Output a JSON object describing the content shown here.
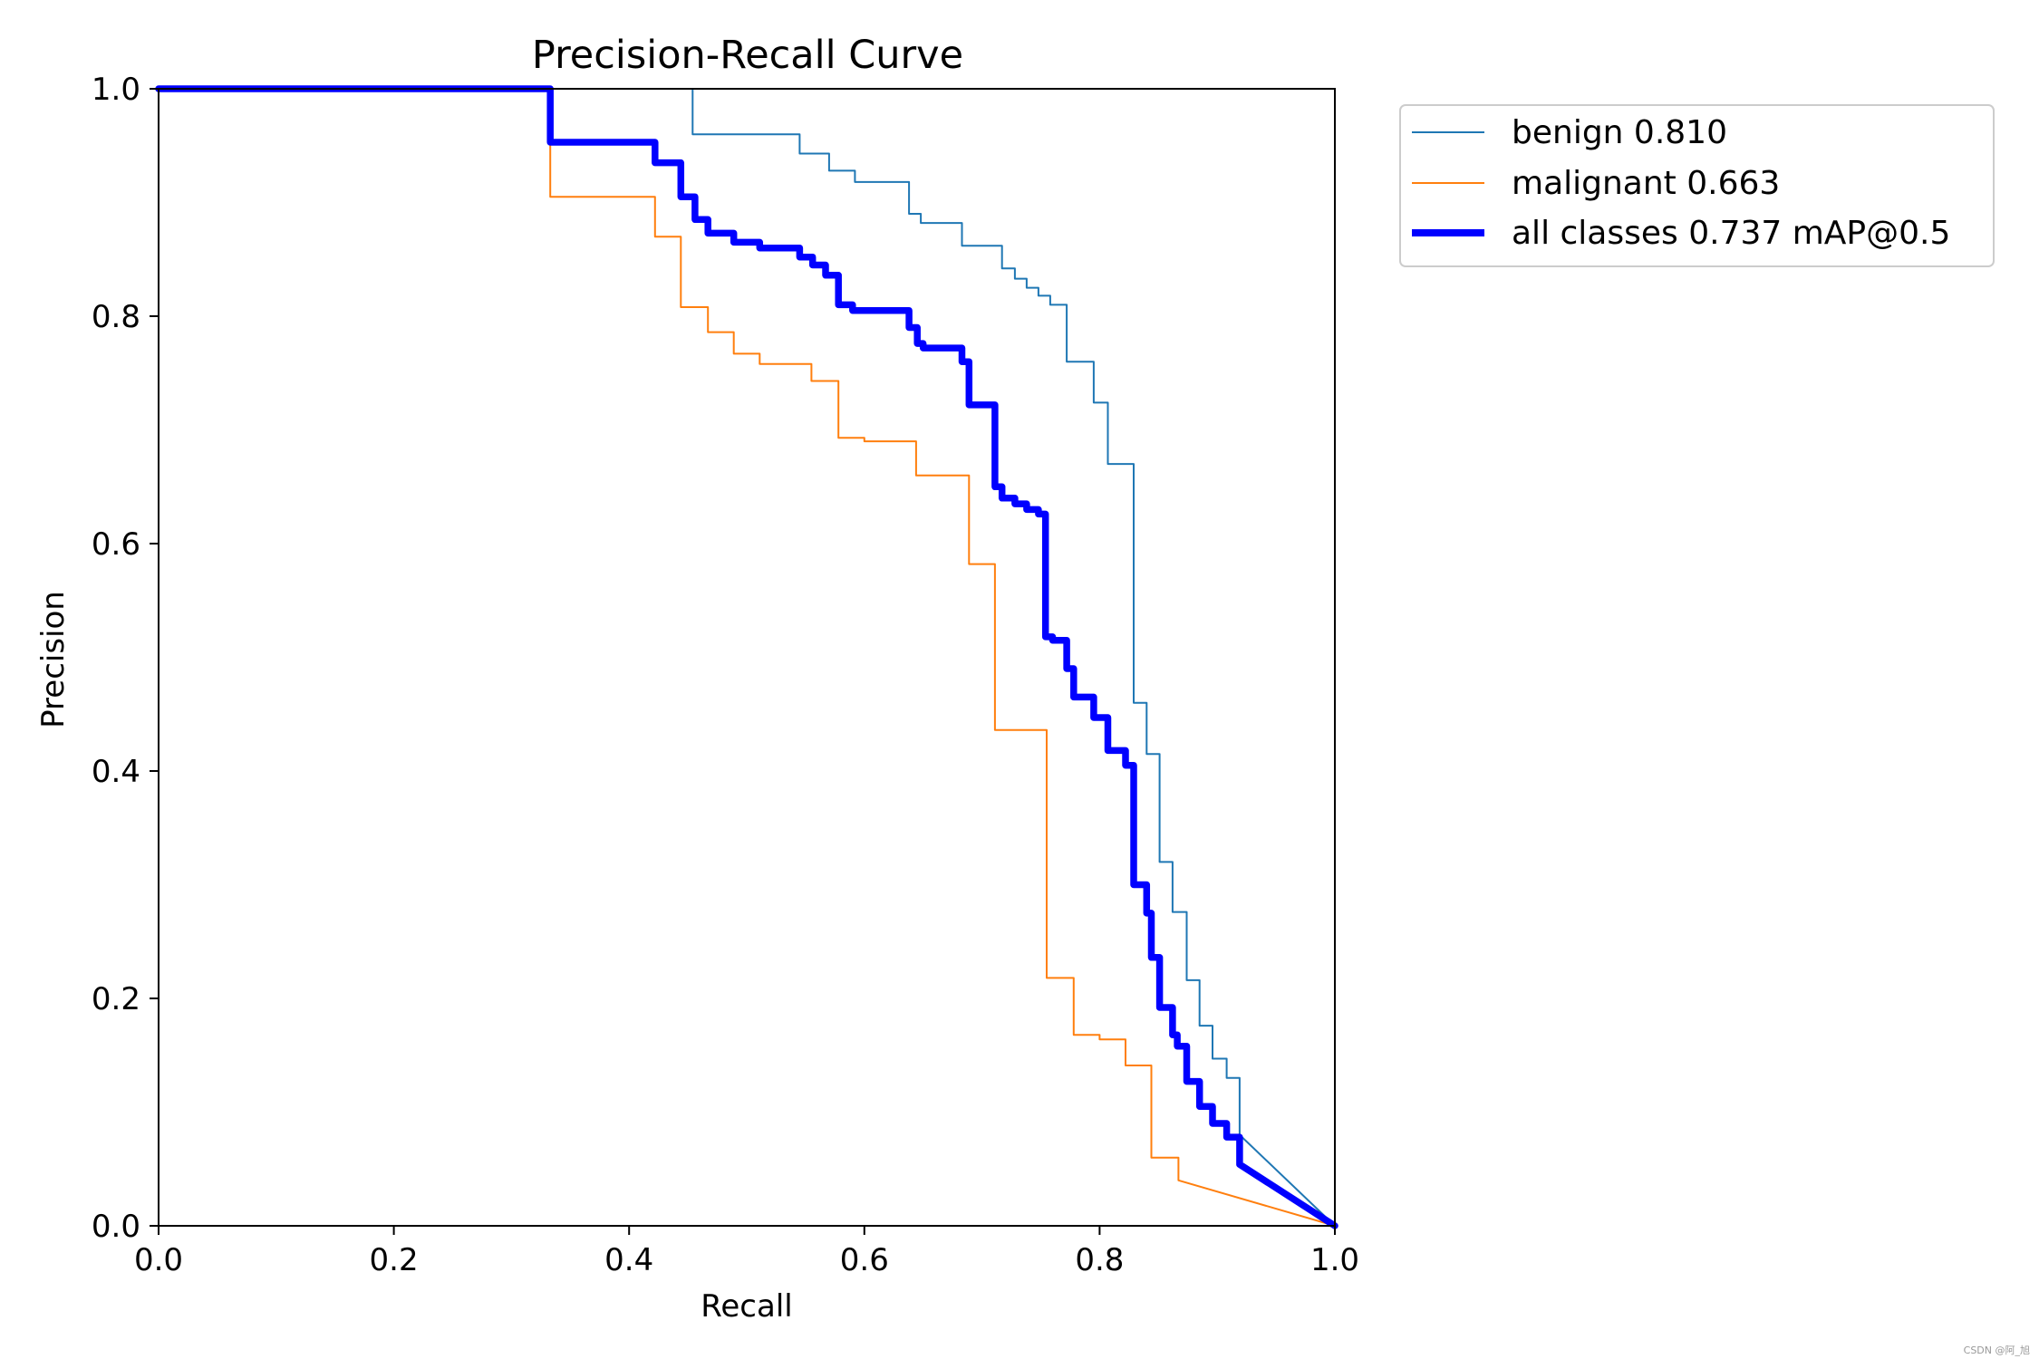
{
  "chart_data": {
    "type": "line",
    "title": "Precision-Recall Curve",
    "xlabel": "Recall",
    "ylabel": "Precision",
    "xlim": [
      0,
      1
    ],
    "ylim": [
      0,
      1
    ],
    "xticks": [
      "0.0",
      "0.2",
      "0.4",
      "0.6",
      "0.8",
      "1.0"
    ],
    "yticks": [
      "0.0",
      "0.2",
      "0.4",
      "0.6",
      "0.8",
      "1.0"
    ],
    "legend_position": "outside-top-right",
    "series": [
      {
        "name": "benign 0.810",
        "color": "#1f77b4",
        "style": "thin",
        "points": [
          [
            0,
            1.0
          ],
          [
            0.454,
            1.0
          ],
          [
            0.454,
            0.96
          ],
          [
            0.545,
            0.96
          ],
          [
            0.545,
            0.943
          ],
          [
            0.57,
            0.943
          ],
          [
            0.57,
            0.928
          ],
          [
            0.592,
            0.928
          ],
          [
            0.592,
            0.918
          ],
          [
            0.638,
            0.918
          ],
          [
            0.638,
            0.89
          ],
          [
            0.648,
            0.89
          ],
          [
            0.648,
            0.882
          ],
          [
            0.683,
            0.882
          ],
          [
            0.683,
            0.862
          ],
          [
            0.717,
            0.862
          ],
          [
            0.717,
            0.842
          ],
          [
            0.728,
            0.842
          ],
          [
            0.728,
            0.833
          ],
          [
            0.738,
            0.833
          ],
          [
            0.738,
            0.825
          ],
          [
            0.748,
            0.825
          ],
          [
            0.748,
            0.818
          ],
          [
            0.758,
            0.818
          ],
          [
            0.758,
            0.81
          ],
          [
            0.772,
            0.81
          ],
          [
            0.772,
            0.76
          ],
          [
            0.795,
            0.76
          ],
          [
            0.795,
            0.724
          ],
          [
            0.807,
            0.724
          ],
          [
            0.807,
            0.67
          ],
          [
            0.829,
            0.67
          ],
          [
            0.829,
            0.46
          ],
          [
            0.84,
            0.46
          ],
          [
            0.84,
            0.415
          ],
          [
            0.851,
            0.415
          ],
          [
            0.851,
            0.32
          ],
          [
            0.862,
            0.32
          ],
          [
            0.862,
            0.276
          ],
          [
            0.874,
            0.276
          ],
          [
            0.874,
            0.216
          ],
          [
            0.885,
            0.216
          ],
          [
            0.885,
            0.176
          ],
          [
            0.896,
            0.176
          ],
          [
            0.896,
            0.147
          ],
          [
            0.908,
            0.147
          ],
          [
            0.908,
            0.13
          ],
          [
            0.919,
            0.13
          ],
          [
            0.919,
            0.08
          ],
          [
            1.0,
            0.0
          ]
        ]
      },
      {
        "name": "malignant 0.663",
        "color": "#ff7f0e",
        "style": "thin",
        "points": [
          [
            0,
            1.0
          ],
          [
            0.333,
            1.0
          ],
          [
            0.333,
            0.905
          ],
          [
            0.422,
            0.905
          ],
          [
            0.422,
            0.87
          ],
          [
            0.444,
            0.87
          ],
          [
            0.444,
            0.808
          ],
          [
            0.467,
            0.808
          ],
          [
            0.467,
            0.786
          ],
          [
            0.489,
            0.786
          ],
          [
            0.489,
            0.767
          ],
          [
            0.511,
            0.767
          ],
          [
            0.511,
            0.758
          ],
          [
            0.555,
            0.758
          ],
          [
            0.555,
            0.743
          ],
          [
            0.578,
            0.743
          ],
          [
            0.578,
            0.693
          ],
          [
            0.6,
            0.693
          ],
          [
            0.6,
            0.69
          ],
          [
            0.644,
            0.69
          ],
          [
            0.644,
            0.66
          ],
          [
            0.689,
            0.66
          ],
          [
            0.689,
            0.582
          ],
          [
            0.711,
            0.582
          ],
          [
            0.711,
            0.436
          ],
          [
            0.755,
            0.436
          ],
          [
            0.755,
            0.218
          ],
          [
            0.778,
            0.218
          ],
          [
            0.778,
            0.168
          ],
          [
            0.8,
            0.168
          ],
          [
            0.8,
            0.164
          ],
          [
            0.822,
            0.164
          ],
          [
            0.822,
            0.141
          ],
          [
            0.844,
            0.141
          ],
          [
            0.844,
            0.06
          ],
          [
            0.867,
            0.06
          ],
          [
            0.867,
            0.04
          ],
          [
            1.0,
            0.0
          ]
        ]
      },
      {
        "name": "all classes 0.737 mAP@0.5",
        "color": "#0000ff",
        "style": "thick",
        "points": [
          [
            0,
            1.0
          ],
          [
            0.333,
            1.0
          ],
          [
            0.333,
            0.953
          ],
          [
            0.422,
            0.953
          ],
          [
            0.422,
            0.935
          ],
          [
            0.444,
            0.935
          ],
          [
            0.444,
            0.905
          ],
          [
            0.456,
            0.905
          ],
          [
            0.456,
            0.885
          ],
          [
            0.467,
            0.885
          ],
          [
            0.467,
            0.873
          ],
          [
            0.489,
            0.873
          ],
          [
            0.489,
            0.865
          ],
          [
            0.511,
            0.865
          ],
          [
            0.511,
            0.86
          ],
          [
            0.545,
            0.86
          ],
          [
            0.545,
            0.852
          ],
          [
            0.556,
            0.852
          ],
          [
            0.556,
            0.845
          ],
          [
            0.567,
            0.845
          ],
          [
            0.567,
            0.836
          ],
          [
            0.578,
            0.836
          ],
          [
            0.578,
            0.81
          ],
          [
            0.59,
            0.81
          ],
          [
            0.59,
            0.805
          ],
          [
            0.638,
            0.805
          ],
          [
            0.638,
            0.79
          ],
          [
            0.645,
            0.79
          ],
          [
            0.645,
            0.776
          ],
          [
            0.65,
            0.776
          ],
          [
            0.65,
            0.772
          ],
          [
            0.683,
            0.772
          ],
          [
            0.683,
            0.76
          ],
          [
            0.689,
            0.76
          ],
          [
            0.689,
            0.722
          ],
          [
            0.711,
            0.722
          ],
          [
            0.711,
            0.65
          ],
          [
            0.717,
            0.65
          ],
          [
            0.717,
            0.64
          ],
          [
            0.728,
            0.64
          ],
          [
            0.728,
            0.635
          ],
          [
            0.738,
            0.635
          ],
          [
            0.738,
            0.63
          ],
          [
            0.748,
            0.63
          ],
          [
            0.748,
            0.626
          ],
          [
            0.754,
            0.626
          ],
          [
            0.754,
            0.518
          ],
          [
            0.76,
            0.518
          ],
          [
            0.76,
            0.515
          ],
          [
            0.772,
            0.515
          ],
          [
            0.772,
            0.49
          ],
          [
            0.778,
            0.49
          ],
          [
            0.778,
            0.465
          ],
          [
            0.795,
            0.465
          ],
          [
            0.795,
            0.447
          ],
          [
            0.807,
            0.447
          ],
          [
            0.807,
            0.418
          ],
          [
            0.822,
            0.418
          ],
          [
            0.822,
            0.405
          ],
          [
            0.829,
            0.405
          ],
          [
            0.829,
            0.3
          ],
          [
            0.84,
            0.3
          ],
          [
            0.84,
            0.275
          ],
          [
            0.844,
            0.275
          ],
          [
            0.844,
            0.236
          ],
          [
            0.851,
            0.236
          ],
          [
            0.851,
            0.192
          ],
          [
            0.862,
            0.192
          ],
          [
            0.862,
            0.168
          ],
          [
            0.866,
            0.168
          ],
          [
            0.866,
            0.158
          ],
          [
            0.874,
            0.158
          ],
          [
            0.874,
            0.127
          ],
          [
            0.885,
            0.127
          ],
          [
            0.885,
            0.105
          ],
          [
            0.896,
            0.105
          ],
          [
            0.896,
            0.09
          ],
          [
            0.908,
            0.09
          ],
          [
            0.908,
            0.078
          ],
          [
            0.919,
            0.078
          ],
          [
            0.919,
            0.054
          ],
          [
            1.0,
            0.0
          ]
        ]
      }
    ]
  },
  "watermark": "CSDN @阿_旭"
}
